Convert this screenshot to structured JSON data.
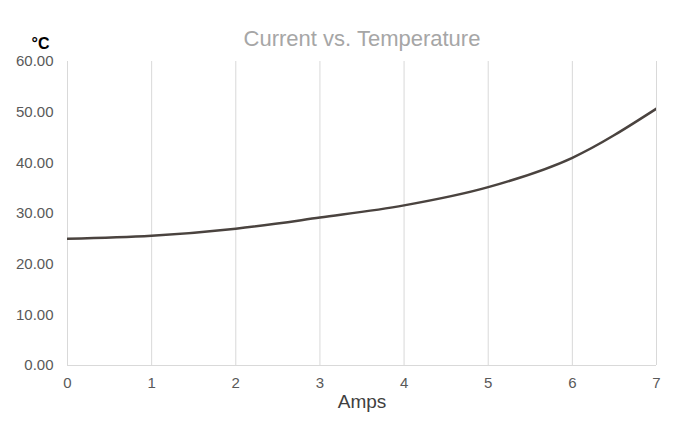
{
  "chart_data": {
    "type": "line",
    "title": "Current vs. Temperature",
    "x_label": "Amps",
    "y_label": "°C",
    "x": [
      0,
      1,
      2,
      3,
      4,
      5,
      6,
      7
    ],
    "values": [
      25.0,
      25.6,
      27.0,
      29.2,
      31.6,
      35.2,
      41.0,
      50.7
    ],
    "color": "#4a433f",
    "xlim": [
      0,
      7
    ],
    "xticks": [
      0,
      1,
      2,
      3,
      4,
      5,
      6,
      7
    ],
    "ylim": [
      0,
      60
    ],
    "yticks": [
      {
        "value": 0,
        "label": "0.00"
      },
      {
        "value": 10,
        "label": "10.00"
      },
      {
        "value": 20,
        "label": "20.00"
      },
      {
        "value": 30,
        "label": "30.00"
      },
      {
        "value": 40,
        "label": "40.00"
      },
      {
        "value": 50,
        "label": "50.00"
      },
      {
        "value": 60,
        "label": "60.00"
      }
    ],
    "grid": true
  }
}
